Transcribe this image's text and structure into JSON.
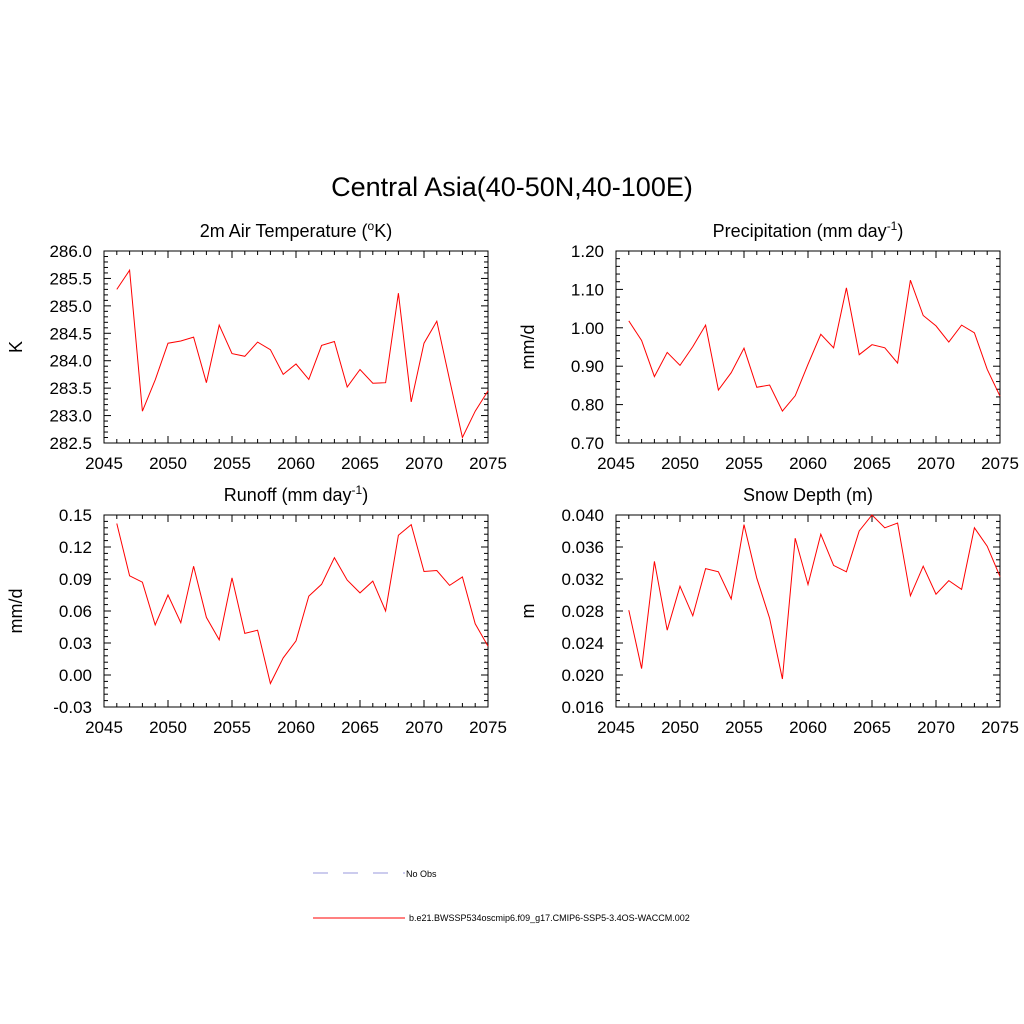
{
  "figure": {
    "title": "Central Asia(40-50N,40-100E)"
  },
  "legend": {
    "entries": [
      {
        "label": "No Obs",
        "color": "#9999dd",
        "style": "dashed"
      },
      {
        "label": "b.e21.BWSSP534oscmip6.f09_g17.CMIP6-SSP5-3.4OS-WACCM.002",
        "color": "#ff0000",
        "style": "solid"
      }
    ]
  },
  "chart_data": [
    {
      "type": "line",
      "title": "2m Air Temperature (",
      "title_sup": "o",
      "title_after": "K)",
      "ylabel": "K",
      "xlim": [
        2045,
        2075
      ],
      "ylim": [
        282.5,
        286.0
      ],
      "xticks": [
        "2045",
        "2050",
        "2055",
        "2060",
        "2065",
        "2070",
        "2075"
      ],
      "yticks": [
        "282.5",
        "283.0",
        "283.5",
        "284.0",
        "284.5",
        "285.0",
        "285.5",
        "286.0"
      ],
      "series": [
        {
          "name": "b.e21.BWSSP534oscmip6.f09_g17.CMIP6-SSP5-3.4OS-WACCM.002",
          "color": "#ff0000",
          "x": [
            2046,
            2047,
            2048,
            2049,
            2050,
            2051,
            2052,
            2053,
            2054,
            2055,
            2056,
            2057,
            2058,
            2059,
            2060,
            2061,
            2062,
            2063,
            2064,
            2065,
            2066,
            2067,
            2068,
            2069,
            2070,
            2071,
            2072,
            2073,
            2074,
            2075
          ],
          "values": [
            285.3,
            285.65,
            283.08,
            283.65,
            284.32,
            284.36,
            284.43,
            283.6,
            284.65,
            284.13,
            284.08,
            284.34,
            284.2,
            283.75,
            283.94,
            283.66,
            284.28,
            284.35,
            283.52,
            283.84,
            283.59,
            283.6,
            285.23,
            283.25,
            284.32,
            284.72,
            283.65,
            282.6,
            283.08,
            283.45
          ]
        }
      ]
    },
    {
      "type": "line",
      "title": "Precipitation (mm day",
      "title_sup": "-1",
      "title_after": ")",
      "ylabel": "mm/d",
      "xlim": [
        2045,
        2075
      ],
      "ylim": [
        0.7,
        1.2
      ],
      "xticks": [
        "2045",
        "2050",
        "2055",
        "2060",
        "2065",
        "2070",
        "2075"
      ],
      "yticks": [
        "0.70",
        "0.80",
        "0.90",
        "1.00",
        "1.10",
        "1.20"
      ],
      "series": [
        {
          "name": "b.e21.BWSSP534oscmip6.f09_g17.CMIP6-SSP5-3.4OS-WACCM.002",
          "color": "#ff0000",
          "x": [
            2046,
            2047,
            2048,
            2049,
            2050,
            2051,
            2052,
            2053,
            2054,
            2055,
            2056,
            2057,
            2058,
            2059,
            2060,
            2061,
            2062,
            2063,
            2064,
            2065,
            2066,
            2067,
            2068,
            2069,
            2070,
            2071,
            2072,
            2073,
            2074,
            2075
          ],
          "values": [
            1.018,
            0.967,
            0.873,
            0.936,
            0.902,
            0.951,
            1.007,
            0.838,
            0.883,
            0.947,
            0.845,
            0.851,
            0.783,
            0.823,
            0.905,
            0.983,
            0.948,
            1.104,
            0.93,
            0.956,
            0.948,
            0.908,
            1.124,
            1.032,
            1.005,
            0.963,
            1.007,
            0.987,
            0.892,
            0.822
          ]
        }
      ]
    },
    {
      "type": "line",
      "title": "Runoff (mm day",
      "title_sup": "-1",
      "title_after": ")",
      "ylabel": "mm/d",
      "xlim": [
        2045,
        2075
      ],
      "ylim": [
        -0.03,
        0.15
      ],
      "xticks": [
        "2045",
        "2050",
        "2055",
        "2060",
        "2065",
        "2070",
        "2075"
      ],
      "yticks": [
        "-0.03",
        "0.00",
        "0.03",
        "0.06",
        "0.09",
        "0.12",
        "0.15"
      ],
      "series": [
        {
          "name": "b.e21.BWSSP534oscmip6.f09_g17.CMIP6-SSP5-3.4OS-WACCM.002",
          "color": "#ff0000",
          "x": [
            2046,
            2047,
            2048,
            2049,
            2050,
            2051,
            2052,
            2053,
            2054,
            2055,
            2056,
            2057,
            2058,
            2059,
            2060,
            2061,
            2062,
            2063,
            2064,
            2065,
            2066,
            2067,
            2068,
            2069,
            2070,
            2071,
            2072,
            2073,
            2074,
            2075
          ],
          "values": [
            0.142,
            0.093,
            0.087,
            0.047,
            0.075,
            0.049,
            0.102,
            0.054,
            0.033,
            0.091,
            0.039,
            0.042,
            -0.008,
            0.016,
            0.032,
            0.074,
            0.085,
            0.11,
            0.089,
            0.077,
            0.088,
            0.06,
            0.131,
            0.141,
            0.097,
            0.098,
            0.084,
            0.092,
            0.048,
            0.027
          ]
        }
      ]
    },
    {
      "type": "line",
      "title": "Snow Depth (m)",
      "title_sup": "",
      "title_after": "",
      "ylabel": "m",
      "xlim": [
        2045,
        2075
      ],
      "ylim": [
        0.016,
        0.04
      ],
      "xticks": [
        "2045",
        "2050",
        "2055",
        "2060",
        "2065",
        "2070",
        "2075"
      ],
      "yticks": [
        "0.016",
        "0.020",
        "0.024",
        "0.028",
        "0.032",
        "0.036",
        "0.040"
      ],
      "series": [
        {
          "name": "b.e21.BWSSP534oscmip6.f09_g17.CMIP6-SSP5-3.4OS-WACCM.002",
          "color": "#ff0000",
          "x": [
            2046,
            2047,
            2048,
            2049,
            2050,
            2051,
            2052,
            2053,
            2054,
            2055,
            2056,
            2057,
            2058,
            2059,
            2060,
            2061,
            2062,
            2063,
            2064,
            2065,
            2066,
            2067,
            2068,
            2069,
            2070,
            2071,
            2072,
            2073,
            2074,
            2075
          ],
          "values": [
            0.0281,
            0.0208,
            0.0342,
            0.0256,
            0.0311,
            0.0274,
            0.0333,
            0.0329,
            0.0295,
            0.0388,
            0.0321,
            0.0271,
            0.0195,
            0.0371,
            0.0313,
            0.0376,
            0.0337,
            0.0329,
            0.038,
            0.04,
            0.0384,
            0.039,
            0.0299,
            0.0336,
            0.0301,
            0.0318,
            0.0307,
            0.0384,
            0.0361,
            0.0323
          ]
        }
      ]
    }
  ]
}
